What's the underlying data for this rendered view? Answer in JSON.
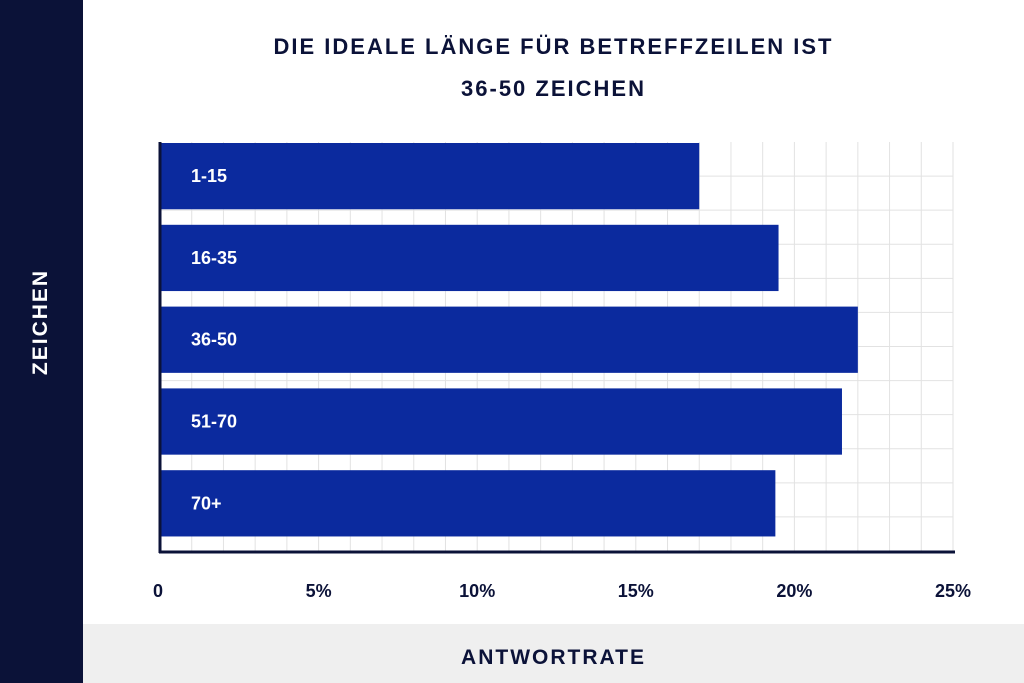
{
  "chart_data": {
    "type": "bar",
    "orientation": "horizontal",
    "title_lines": [
      "DIE IDEALE LÄNGE FÜR BETREFFZEILEN IST",
      "36-50 ZEICHEN"
    ],
    "xlabel": "ANTWORTRATE",
    "ylabel": "ZEICHEN",
    "categories": [
      "1-15",
      "16-35",
      "36-50",
      "51-70",
      "70+"
    ],
    "values": [
      17.0,
      19.5,
      22.0,
      21.5,
      19.4
    ],
    "xlim": [
      0,
      25
    ],
    "xticks": [
      0,
      5,
      10,
      15,
      20,
      25
    ],
    "xtick_labels": [
      "0",
      "5%",
      "10%",
      "15%",
      "20%",
      "25%"
    ],
    "grid": true,
    "colors": {
      "bar": "#0b2a9e",
      "band": "#0b1238",
      "footer": "#efefef",
      "grid": "#e2e2e2",
      "axis": "#0b1238"
    }
  }
}
